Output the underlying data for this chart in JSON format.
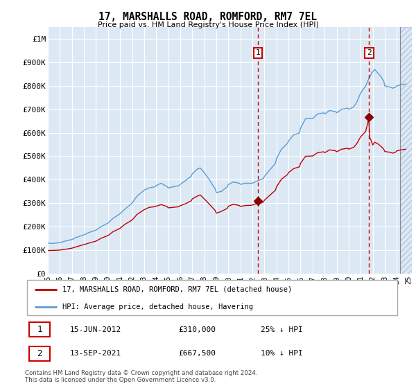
{
  "title": "17, MARSHALLS ROAD, ROMFORD, RM7 7EL",
  "subtitle": "Price paid vs. HM Land Registry's House Price Index (HPI)",
  "legend_line1": "17, MARSHALLS ROAD, ROMFORD, RM7 7EL (detached house)",
  "legend_line2": "HPI: Average price, detached house, Havering",
  "footer": "Contains HM Land Registry data © Crown copyright and database right 2024.\nThis data is licensed under the Open Government Licence v3.0.",
  "annotation1_date": "15-JUN-2012",
  "annotation1_price": "£310,000",
  "annotation1_hpi": "25% ↓ HPI",
  "annotation2_date": "13-SEP-2021",
  "annotation2_price": "£667,500",
  "annotation2_hpi": "10% ↓ HPI",
  "sale1_date": "2012-06-15",
  "sale1_value": 310000,
  "sale2_date": "2021-09-13",
  "sale2_value": 667500,
  "hpi_color": "#5b9bd5",
  "price_color": "#c00000",
  "sale_dot_color": "#8b0000",
  "annotation_box_color": "#cc0000",
  "vline_color": "#cc0000",
  "plot_bg": "#dce9f5",
  "hatch_color": "#c8d8ea",
  "ylim": [
    0,
    1050000
  ],
  "yticks": [
    0,
    100000,
    200000,
    300000,
    400000,
    500000,
    600000,
    700000,
    800000,
    900000,
    1000000
  ],
  "ytick_labels": [
    "£0",
    "£100K",
    "£200K",
    "£300K",
    "£400K",
    "£500K",
    "£600K",
    "£700K",
    "£800K",
    "£900K",
    "£1M"
  ],
  "xmin": "1995-01-01",
  "xmax": "2025-04-01",
  "hatch_start": "2024-04-01",
  "xtick_years": [
    1995,
    1996,
    1997,
    1998,
    1999,
    2000,
    2001,
    2002,
    2003,
    2004,
    2005,
    2006,
    2007,
    2008,
    2009,
    2010,
    2011,
    2012,
    2013,
    2014,
    2015,
    2016,
    2017,
    2018,
    2019,
    2020,
    2021,
    2022,
    2023,
    2024,
    2025
  ]
}
